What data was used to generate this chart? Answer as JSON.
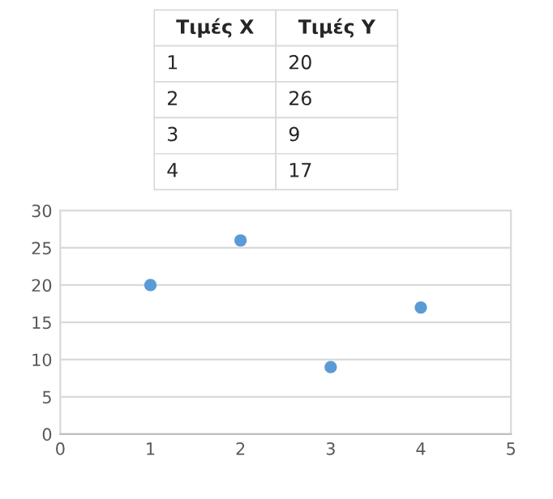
{
  "chart_data": {
    "type": "scatter",
    "x": [
      1,
      2,
      3,
      4
    ],
    "values": [
      20,
      26,
      9,
      17
    ],
    "color": "#5b9bd5",
    "marker": "circle",
    "xlim": [
      0,
      5
    ],
    "xticks": [
      0,
      1,
      2,
      3,
      4,
      5
    ],
    "ylim": [
      0,
      30
    ],
    "yticks": [
      0,
      5,
      10,
      15,
      20,
      25,
      30
    ],
    "grid": "y",
    "annotations": [
      "Τιμές X",
      "Τιμές Y",
      "1",
      "20",
      "2",
      "26",
      "3",
      "9",
      "4",
      "17"
    ]
  }
}
